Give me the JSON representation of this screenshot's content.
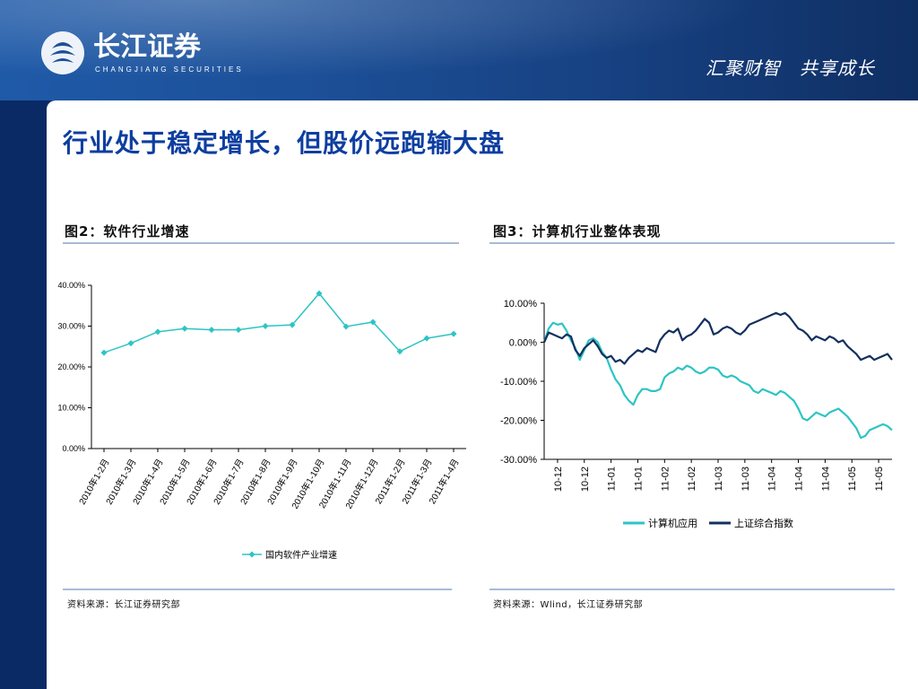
{
  "header": {
    "logo_cn": "长江证券",
    "logo_en": "CHANGJIANG SECURITIES",
    "slogan": "汇聚财智　共享成长",
    "colors": {
      "blue": "#1c4f97",
      "panel": "#ffffff"
    }
  },
  "page": {
    "title": "行业处于稳定增长，但股价远跑输大盘"
  },
  "fig2": {
    "caption": "图2：软件行业增速",
    "source": "资料来源：长江证券研究部"
  },
  "fig3": {
    "caption": "图3：计算机行业整体表现",
    "source": "资料来源：Wlind，长江证券研究部"
  },
  "chart_data": [
    {
      "type": "line",
      "categories": [
        "2010年1-2月",
        "2010年1-3月",
        "2010年1-4月",
        "2010年1-5月",
        "2010年1-6月",
        "2010年1-7月",
        "2010年1-8月",
        "2010年1-9月",
        "2010年1-10月",
        "2010年1-11月",
        "2010年1-12月",
        "2011年1-2月",
        "2011年1-3月",
        "2011年1-4月"
      ],
      "series": [
        {
          "name": "国内软件产业增速",
          "values": [
            23.5,
            25.8,
            28.6,
            29.4,
            29.1,
            29.1,
            30.0,
            30.3,
            38.0,
            29.9,
            31.0,
            23.8,
            27.0,
            28.1
          ],
          "color": "#2ec4c4"
        }
      ],
      "yticks": [
        "0.00%",
        "10.00%",
        "20.00%",
        "30.00%",
        "40.00%"
      ],
      "ylim": [
        0,
        40
      ],
      "legend": "bottom",
      "grid": false
    },
    {
      "type": "line",
      "xticks": [
        "10-12",
        "10-12",
        "11-01",
        "11-01",
        "11-02",
        "11-02",
        "11-03",
        "11-03",
        "11-04",
        "11-04",
        "11-04",
        "11-05",
        "11-05"
      ],
      "yticks": [
        "10.00%",
        "0.00%",
        "-10.00%",
        "-20.00%",
        "-30.00%"
      ],
      "ylim": [
        -30,
        10
      ],
      "legend": "bottom",
      "grid": false,
      "series": [
        {
          "name": "计算机应用",
          "color": "#2ec4c4",
          "values": [
            0.0,
            3.5,
            5.0,
            4.5,
            4.8,
            3.0,
            0.5,
            -1.5,
            -4.5,
            -2.0,
            0.5,
            1.0,
            0.0,
            -2.5,
            -4.0,
            -7.0,
            -9.5,
            -11.0,
            -13.5,
            -15.0,
            -16.0,
            -13.5,
            -12.0,
            -12.0,
            -12.5,
            -12.5,
            -12.0,
            -9.0,
            -8.0,
            -7.5,
            -6.5,
            -7.0,
            -6.0,
            -6.5,
            -7.5,
            -8.0,
            -7.5,
            -6.5,
            -6.5,
            -7.0,
            -8.5,
            -9.0,
            -8.5,
            -9.0,
            -10.0,
            -10.5,
            -11.0,
            -12.5,
            -13.0,
            -12.0,
            -12.5,
            -13.0,
            -13.5,
            -12.5,
            -13.0,
            -14.0,
            -15.0,
            -17.0,
            -19.5,
            -20.0,
            -19.0,
            -18.0,
            -18.5,
            -19.0,
            -18.0,
            -17.5,
            -17.0,
            -18.0,
            -19.0,
            -20.5,
            -22.0,
            -24.5,
            -24.0,
            -22.5,
            -22.0,
            -21.5,
            -21.0,
            -21.5,
            -22.5
          ]
        },
        {
          "name": "上证综合指数",
          "color": "#13305e",
          "values": [
            0.0,
            2.5,
            2.0,
            1.5,
            1.0,
            2.0,
            1.5,
            -2.0,
            -3.5,
            -1.5,
            -0.5,
            0.5,
            -1.0,
            -3.0,
            -4.0,
            -3.5,
            -5.0,
            -4.5,
            -5.5,
            -4.0,
            -3.0,
            -2.0,
            -2.5,
            -1.5,
            -2.0,
            -2.5,
            0.5,
            2.0,
            3.0,
            2.5,
            3.5,
            0.5,
            1.5,
            2.0,
            3.0,
            4.5,
            6.0,
            5.0,
            2.0,
            2.5,
            3.5,
            4.0,
            3.5,
            2.5,
            2.0,
            3.0,
            4.5,
            5.0,
            5.5,
            6.0,
            6.5,
            7.0,
            7.5,
            7.0,
            7.5,
            6.5,
            5.0,
            3.5,
            3.0,
            2.0,
            0.5,
            1.5,
            1.0,
            0.5,
            1.5,
            1.0,
            0.0,
            0.5,
            -1.0,
            -2.0,
            -3.0,
            -4.5,
            -4.0,
            -3.5,
            -4.5,
            -4.0,
            -3.5,
            -3.0,
            -4.5
          ]
        }
      ]
    }
  ]
}
